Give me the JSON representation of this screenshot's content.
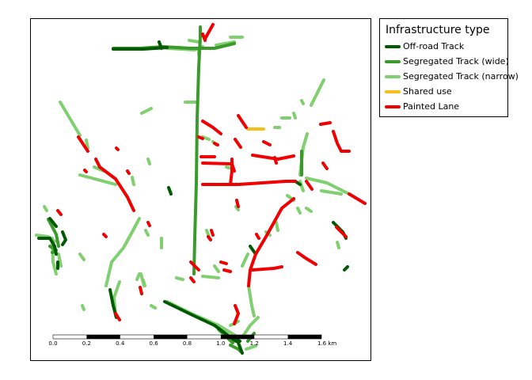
{
  "legend": {
    "title": "Infrastructure type",
    "items": [
      {
        "label": "Off-road Track",
        "color": "#005a00"
      },
      {
        "label": "Segregated Track (wide)",
        "color": "#3a9a2c"
      },
      {
        "label": "Segregated Track (narrow)",
        "color": "#80d070"
      },
      {
        "label": "Shared use",
        "color": "#f5bf1a"
      },
      {
        "label": "Painted Lane",
        "color": "#f00000"
      }
    ]
  },
  "scale_bar": {
    "unit": "km",
    "ticks": [
      "0.0",
      "0.2",
      "0.4",
      "0.6",
      "0.8",
      "1.0",
      "1.2",
      "1.4",
      "1.6"
    ]
  }
}
